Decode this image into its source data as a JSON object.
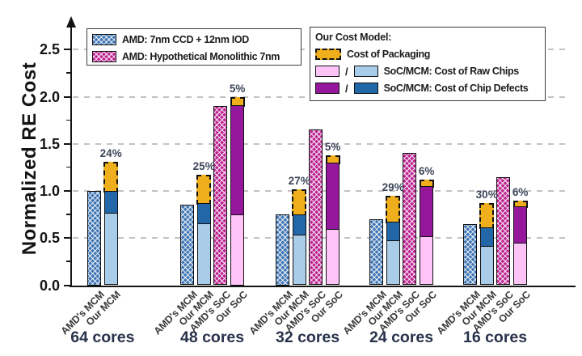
{
  "figure": {
    "background": "#ffffff",
    "y_axis_title": "Normalized RE Cost"
  },
  "chart_data": {
    "type": "bar",
    "subtype": "grouped-stacked",
    "title": "",
    "xlabel": "",
    "ylabel": "Normalized RE Cost",
    "ylim": [
      0,
      2.7
    ],
    "yticks": [
      0.0,
      0.5,
      1.0,
      1.5,
      2.0,
      2.5
    ],
    "grid": "horizontal dashed",
    "bar_kinds": {
      "amd-mcm": "AMD: 7nm CCD + 12nm IOD (blue crosshatch, single value)",
      "amd-soc": "AMD: Hypothetical Monolithic 7nm (magenta crosshatch, single value)",
      "our-mcm": "Our cost model MCM (stack: raw chips + chip defects + packaging)",
      "our-soc": "Our cost model SoC (stack: raw chips + chip defects + packaging)"
    },
    "groups": [
      {
        "label": "64 cores",
        "bars": [
          {
            "label": "AMD's MCM",
            "kind": "amd-mcm",
            "total": 1.0
          },
          {
            "label": "Our MCM",
            "kind": "our-mcm",
            "raw_chips": 0.77,
            "chip_defects": 0.23,
            "packaging": 0.31,
            "packaging_pct_label": "24%"
          }
        ]
      },
      {
        "label": "48 cores",
        "bars": [
          {
            "label": "AMD's MCM",
            "kind": "amd-mcm",
            "total": 0.85
          },
          {
            "label": "Our MCM",
            "kind": "our-mcm",
            "raw_chips": 0.66,
            "chip_defects": 0.21,
            "packaging": 0.3,
            "packaging_pct_label": "25%"
          },
          {
            "label": "AMD's SoC",
            "kind": "amd-soc",
            "total": 1.9
          },
          {
            "label": "Our SoC",
            "kind": "our-soc",
            "raw_chips": 0.75,
            "chip_defects": 1.16,
            "packaging": 0.09,
            "packaging_pct_label": "5%"
          }
        ]
      },
      {
        "label": "32 cores",
        "bars": [
          {
            "label": "AMD's MCM",
            "kind": "amd-mcm",
            "total": 0.75
          },
          {
            "label": "Our MCM",
            "kind": "our-mcm",
            "raw_chips": 0.54,
            "chip_defects": 0.21,
            "packaging": 0.27,
            "packaging_pct_label": "27%"
          },
          {
            "label": "AMD's SoC",
            "kind": "amd-soc",
            "total": 1.65
          },
          {
            "label": "Our SoC",
            "kind": "our-soc",
            "raw_chips": 0.6,
            "chip_defects": 0.7,
            "packaging": 0.08,
            "packaging_pct_label": "5%"
          }
        ]
      },
      {
        "label": "24 cores",
        "bars": [
          {
            "label": "AMD's MCM",
            "kind": "amd-mcm",
            "total": 0.7
          },
          {
            "label": "Our MCM",
            "kind": "our-mcm",
            "raw_chips": 0.48,
            "chip_defects": 0.19,
            "packaging": 0.28,
            "packaging_pct_label": "29%"
          },
          {
            "label": "AMD's SoC",
            "kind": "amd-soc",
            "total": 1.4
          },
          {
            "label": "Our SoC",
            "kind": "our-soc",
            "raw_chips": 0.52,
            "chip_defects": 0.53,
            "packaging": 0.07,
            "packaging_pct_label": "6%"
          }
        ]
      },
      {
        "label": "16 cores",
        "bars": [
          {
            "label": "AMD's MCM",
            "kind": "amd-mcm",
            "total": 0.65
          },
          {
            "label": "Our MCM",
            "kind": "our-mcm",
            "raw_chips": 0.42,
            "chip_defects": 0.19,
            "packaging": 0.26,
            "packaging_pct_label": "30%"
          },
          {
            "label": "AMD's SoC",
            "kind": "amd-soc",
            "total": 1.15
          },
          {
            "label": "Our SoC",
            "kind": "our-soc",
            "raw_chips": 0.45,
            "chip_defects": 0.39,
            "packaging": 0.06,
            "packaging_pct_label": "6%"
          }
        ]
      }
    ],
    "legend_position": "upper left and upper right, inside plot"
  },
  "legend_amd": {
    "items": [
      {
        "swatch": "blue-crosshatch",
        "label": "AMD: 7nm CCD + 12nm IOD"
      },
      {
        "swatch": "magenta-crosshatch",
        "label": "AMD: Hypothetical Monolithic 7nm"
      }
    ]
  },
  "legend_cost_model": {
    "title": "Our Cost Model:",
    "rows": [
      {
        "swatches": [
          "gold-dashed"
        ],
        "separator": "",
        "label": "Cost of Packaging"
      },
      {
        "swatches": [
          "pink",
          "light-blue"
        ],
        "separator": "/",
        "label": "SoC/MCM: Cost of Raw Chips"
      },
      {
        "swatches": [
          "purple",
          "dark-blue"
        ],
        "separator": "/",
        "label": "SoC/MCM: Cost of Chip Defects"
      }
    ]
  },
  "colors": {
    "amd_mcm_hatch": "#3d74b3",
    "amd_soc_hatch": "#bb2190",
    "mcm_raw_chips": "#a9cce9",
    "mcm_chip_defects": "#2268a8",
    "soc_raw_chips": "#fec4f8",
    "soc_chip_defects": "#95189c",
    "packaging": "#efaf1d",
    "grid": "#c3c3c3",
    "axis": "#141414",
    "pct_label": "#3d4659",
    "group_label": "#28324a",
    "bar_tick_label": "#3a3a3a"
  }
}
